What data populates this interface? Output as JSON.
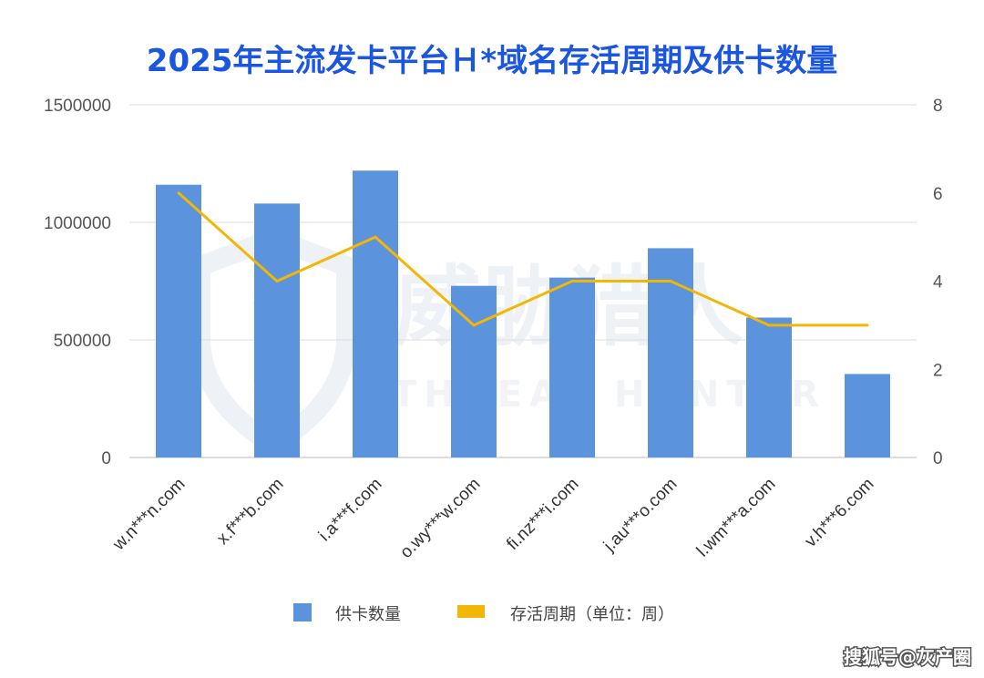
{
  "colors": {
    "bar": "#5b93dc",
    "line": "#f2b705",
    "grid": "#dddddd",
    "title": "#1a56e0"
  },
  "watermark": {
    "cn": "威胁猎人",
    "en": "THREAT HUNTER"
  },
  "credit": "搜狐号@灰产圈",
  "chart_data": {
    "type": "bar",
    "title": "2025年主流发卡平台Ｈ*域名存活周期及供卡数量",
    "categories": [
      "w.n***n.com",
      "x.f***b.com",
      "i.a***f.com",
      "o.wy***w.com",
      "fi.nz***i.com",
      "j.au***o.com",
      "l.wm***a.com",
      "v.h***6.com"
    ],
    "series": [
      {
        "name": "供卡数量",
        "type": "bar",
        "axis": "left",
        "values": [
          1160000,
          1080000,
          1220000,
          730000,
          765000,
          890000,
          595000,
          355000
        ]
      },
      {
        "name": "存活周期（单位：周）",
        "type": "line",
        "axis": "right",
        "values": [
          6,
          4,
          5,
          3,
          4,
          4,
          3,
          3
        ]
      }
    ],
    "y_left": {
      "range": [
        0,
        1500000
      ],
      "ticks": [
        "0",
        "500000",
        "1000000",
        "1500000"
      ]
    },
    "y_right": {
      "range": [
        0,
        8
      ],
      "ticks": [
        "0",
        "2",
        "4",
        "6",
        "8"
      ]
    },
    "grid": true,
    "legend_position": "bottom"
  }
}
